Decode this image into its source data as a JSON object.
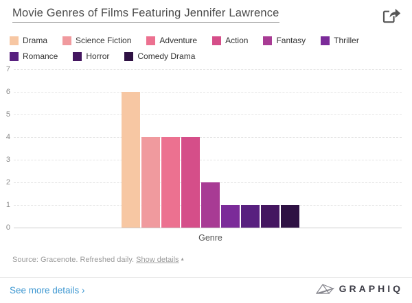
{
  "header": {
    "title": "Movie Genres of Films Featuring Jennifer Lawrence"
  },
  "chart_data": {
    "type": "bar",
    "title": "Movie Genres of Films Featuring Jennifer Lawrence",
    "categories": [
      "Drama",
      "Science Fiction",
      "Adventure",
      "Action",
      "Fantasy",
      "Thriller",
      "Romance",
      "Horror",
      "Comedy Drama"
    ],
    "values": [
      6,
      4,
      4,
      4,
      2,
      1,
      1,
      1,
      1
    ],
    "colors": [
      "#F7C7A3",
      "#F09A9E",
      "#EC7190",
      "#D54E89",
      "#A83B94",
      "#7B2B99",
      "#58207F",
      "#441660",
      "#2E1143"
    ],
    "xlabel": "Genre",
    "ylabel": "",
    "ylim": [
      0,
      7
    ],
    "yticks": [
      0,
      1,
      2,
      3,
      4,
      5,
      6,
      7
    ],
    "grid": "horizontal-dashed",
    "legend_position": "top"
  },
  "source": {
    "prefix": "Source: Gracenote. Refreshed daily. ",
    "link": "Show details",
    "arrow": "▴"
  },
  "footer": {
    "link": "See more details ›",
    "brand": "GRAPHIQ"
  },
  "colors": {
    "link_blue": "#3d97d1",
    "title_gray": "#4a4a4a",
    "axis_gray": "#8a8a8a"
  }
}
